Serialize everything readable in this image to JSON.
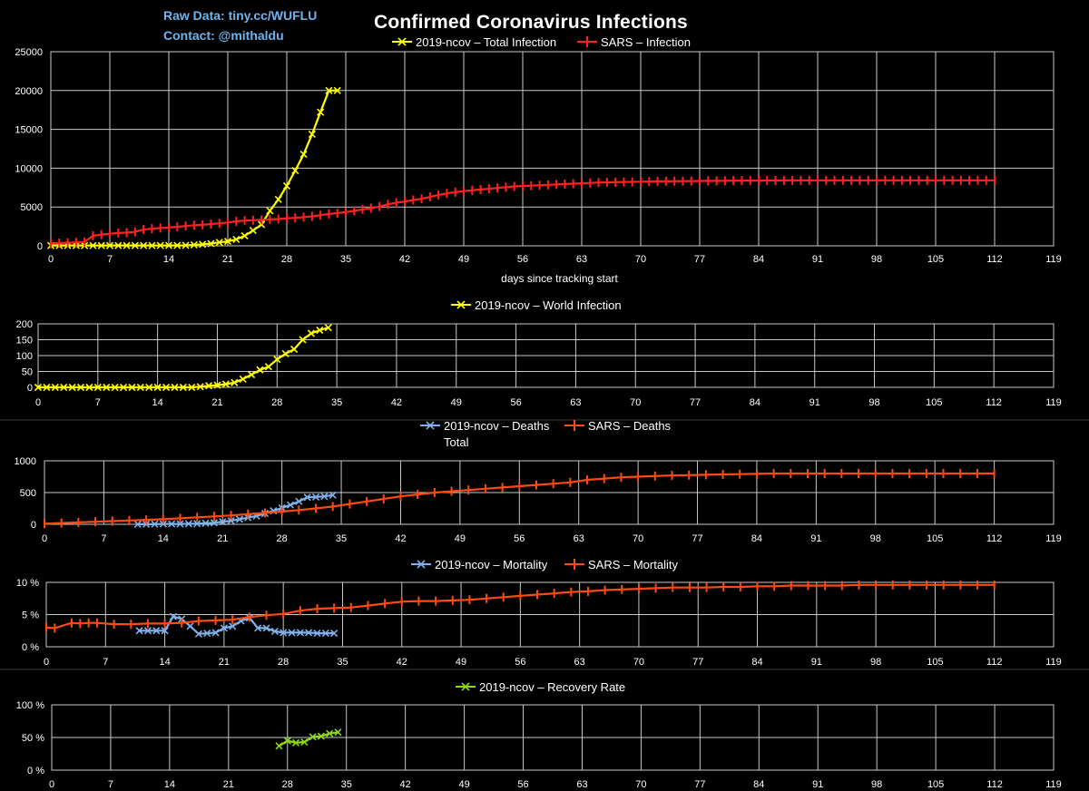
{
  "header": {
    "raw_data": "Raw Data: tiny.cc/WUFLU",
    "contact": "Contact: @mithaldu",
    "title": "Confirmed Coronavirus Infections"
  },
  "colors": {
    "background": "#000000",
    "grid": "#c8c8c8",
    "ncov_total": "#ffff00",
    "sars": "#ff2020",
    "sars_orange": "#ff4a10",
    "ncov_deaths": "#7fb2ec",
    "recovery": "#8ed81a"
  },
  "chart_data": [
    {
      "type": "line",
      "title": "",
      "xlabel": "days since tracking start",
      "ylabel": "",
      "xlim": [
        0,
        119
      ],
      "ylim": [
        0,
        25000
      ],
      "xticks": [
        "0",
        "7",
        "14",
        "21",
        "28",
        "35",
        "42",
        "49",
        "56",
        "63",
        "70",
        "77",
        "84",
        "91",
        "98",
        "105",
        "112",
        "119"
      ],
      "yticks": [
        "0",
        "5000",
        "10000",
        "15000",
        "20000",
        "25000"
      ],
      "series": [
        {
          "name": "2019-ncov – Total Infection",
          "marker": "x",
          "color": "#ffff00",
          "x": [
            0,
            1,
            2,
            3,
            4,
            5,
            6,
            7,
            8,
            9,
            10,
            11,
            12,
            13,
            14,
            15,
            16,
            17,
            18,
            19,
            20,
            21,
            22,
            23,
            24,
            25,
            26,
            27,
            28,
            29,
            30,
            31,
            32,
            33,
            34
          ],
          "values": [
            41,
            41,
            41,
            41,
            41,
            41,
            41,
            41,
            41,
            41,
            41,
            41,
            41,
            45,
            45,
            45,
            62,
            121,
            198,
            291,
            440,
            571,
            830,
            1287,
            1975,
            2744,
            4515,
            5974,
            7711,
            9692,
            11791,
            14380,
            17205,
            20000,
            20000
          ]
        },
        {
          "name": "SARS – Infection",
          "marker": "+",
          "color": "#ff2020",
          "x": [
            0,
            1,
            2,
            3,
            4,
            5,
            6,
            7,
            8,
            9,
            10,
            11,
            12,
            13,
            14,
            15,
            16,
            17,
            18,
            19,
            20,
            21,
            22,
            23,
            24,
            25,
            26,
            27,
            28,
            29,
            30,
            31,
            32,
            33,
            34,
            35,
            36,
            37,
            38,
            39,
            40,
            41,
            42,
            43,
            44,
            45,
            46,
            47,
            48,
            49,
            50,
            51,
            52,
            53,
            54,
            55,
            56,
            57,
            58,
            59,
            60,
            61,
            62,
            63,
            64,
            65,
            66,
            67,
            68,
            69,
            70,
            71,
            72,
            73,
            74,
            75,
            76,
            77,
            78,
            79,
            80,
            81,
            82,
            83,
            84,
            85,
            86,
            87,
            88,
            89,
            90,
            91,
            92,
            93,
            94,
            95,
            96,
            97,
            98,
            99,
            100,
            101,
            102,
            103,
            104,
            105,
            106,
            107,
            108,
            109,
            110,
            111,
            112
          ],
          "values": [
            300,
            350,
            400,
            450,
            500,
            1300,
            1450,
            1550,
            1650,
            1700,
            1800,
            2100,
            2200,
            2300,
            2350,
            2450,
            2550,
            2650,
            2700,
            2800,
            2900,
            3000,
            3150,
            3250,
            3300,
            3350,
            3400,
            3450,
            3550,
            3600,
            3700,
            3800,
            3950,
            4100,
            4200,
            4350,
            4500,
            4700,
            4850,
            5050,
            5350,
            5550,
            5700,
            5900,
            6050,
            6300,
            6550,
            6750,
            6900,
            7050,
            7150,
            7250,
            7350,
            7450,
            7550,
            7650,
            7700,
            7750,
            7800,
            7850,
            7900,
            7950,
            8000,
            8050,
            8100,
            8150,
            8180,
            8200,
            8220,
            8240,
            8260,
            8280,
            8300,
            8310,
            8320,
            8330,
            8340,
            8350,
            8360,
            8370,
            8380,
            8390,
            8400,
            8405,
            8410,
            8415,
            8420,
            8425,
            8430,
            8435,
            8440,
            8440,
            8440,
            8440,
            8440,
            8440,
            8440,
            8440,
            8440,
            8440,
            8440,
            8440,
            8440,
            8440,
            8440,
            8440,
            8440,
            8440,
            8440,
            8440,
            8440,
            8440,
            8440
          ]
        }
      ]
    },
    {
      "type": "line",
      "title": "",
      "xlabel": "",
      "ylabel": "",
      "xlim": [
        0,
        119
      ],
      "ylim": [
        0,
        200
      ],
      "xticks": [
        "0",
        "7",
        "14",
        "21",
        "28",
        "35",
        "42",
        "49",
        "56",
        "63",
        "70",
        "77",
        "84",
        "91",
        "98",
        "105",
        "112",
        "119"
      ],
      "yticks": [
        "0",
        "50",
        "100",
        "150",
        "200"
      ],
      "series": [
        {
          "name": "2019-ncov – World Infection",
          "marker": "x",
          "color": "#ffff00",
          "x": [
            0,
            1,
            2,
            3,
            4,
            5,
            6,
            7,
            8,
            9,
            10,
            11,
            12,
            13,
            14,
            15,
            16,
            17,
            18,
            19,
            20,
            21,
            22,
            23,
            24,
            25,
            26,
            27,
            28,
            29,
            30,
            31,
            32,
            33,
            34
          ],
          "values": [
            0,
            0,
            0,
            0,
            0,
            0,
            0,
            0,
            0,
            0,
            0,
            0,
            0,
            0,
            0,
            0,
            0,
            0,
            0,
            2,
            5,
            7,
            10,
            15,
            26,
            40,
            55,
            65,
            88,
            106,
            120,
            150,
            170,
            180,
            188
          ]
        }
      ]
    },
    {
      "type": "line",
      "title": "",
      "xlabel": "",
      "ylabel": "",
      "xlim": [
        0,
        119
      ],
      "ylim": [
        0,
        1000
      ],
      "xticks": [
        "0",
        "7",
        "14",
        "21",
        "28",
        "35",
        "42",
        "49",
        "56",
        "63",
        "70",
        "77",
        "84",
        "91",
        "98",
        "105",
        "112",
        "119"
      ],
      "yticks": [
        "0",
        "500",
        "1000"
      ],
      "series": [
        {
          "name": "2019-ncov – Deaths\nTotal",
          "marker": "x",
          "color": "#7fb2ec",
          "x": [
            11,
            12,
            13,
            14,
            15,
            16,
            17,
            18,
            19,
            20,
            21,
            22,
            23,
            24,
            25,
            26,
            27,
            28,
            29,
            30,
            31,
            32,
            33,
            34
          ],
          "values": [
            1,
            2,
            2,
            6,
            6,
            6,
            9,
            9,
            17,
            25,
            41,
            56,
            80,
            106,
            132,
            170,
            213,
            259,
            304,
            361,
            425,
            430,
            440,
            460
          ]
        },
        {
          "name": "SARS – Deaths",
          "marker": "+",
          "color": "#ff4a10",
          "x": [
            0,
            2,
            4,
            6,
            8,
            10,
            12,
            14,
            16,
            18,
            20,
            22,
            24,
            26,
            28,
            30,
            32,
            34,
            36,
            38,
            40,
            42,
            44,
            46,
            48,
            50,
            52,
            54,
            56,
            58,
            60,
            62,
            64,
            66,
            68,
            70,
            72,
            74,
            76,
            78,
            80,
            82,
            84,
            86,
            88,
            90,
            92,
            94,
            96,
            98,
            100,
            102,
            104,
            106,
            108,
            110,
            112
          ],
          "values": [
            10,
            20,
            30,
            40,
            50,
            60,
            70,
            80,
            95,
            110,
            125,
            140,
            160,
            180,
            200,
            225,
            250,
            280,
            320,
            360,
            400,
            440,
            470,
            500,
            520,
            540,
            560,
            580,
            600,
            620,
            640,
            660,
            700,
            720,
            740,
            750,
            760,
            770,
            775,
            780,
            785,
            790,
            795,
            800,
            800,
            800,
            800,
            800,
            800,
            800,
            800,
            800,
            800,
            800,
            800,
            800,
            800
          ]
        }
      ]
    },
    {
      "type": "line",
      "title": "",
      "xlabel": "",
      "ylabel": "",
      "xlim": [
        0,
        119
      ],
      "ylim": [
        0,
        10
      ],
      "xticks": [
        "0",
        "7",
        "14",
        "21",
        "28",
        "35",
        "42",
        "49",
        "56",
        "63",
        "70",
        "77",
        "84",
        "91",
        "98",
        "105",
        "112",
        "119"
      ],
      "yticks": [
        "0 %",
        "5 %",
        "10 %"
      ],
      "series": [
        {
          "name": "2019-ncov – Mortality",
          "marker": "x",
          "color": "#7fb2ec",
          "x": [
            11,
            12,
            13,
            14,
            15,
            16,
            17,
            18,
            19,
            20,
            21,
            22,
            23,
            24,
            25,
            26,
            27,
            28,
            29,
            30,
            31,
            32,
            33,
            34
          ],
          "values": [
            2.5,
            2.5,
            2.5,
            2.5,
            4.7,
            4.3,
            3.2,
            2.0,
            2.1,
            2.2,
            2.9,
            3.2,
            4.0,
            4.5,
            2.9,
            2.9,
            2.4,
            2.2,
            2.2,
            2.2,
            2.2,
            2.1,
            2.1,
            2.1
          ]
        },
        {
          "name": "SARS – Mortality",
          "marker": "+",
          "color": "#ff4a10",
          "x": [
            0,
            1,
            3,
            4,
            5,
            6,
            8,
            10,
            12,
            14,
            16,
            18,
            20,
            22,
            24,
            26,
            28,
            30,
            32,
            34,
            36,
            38,
            40,
            42,
            44,
            46,
            48,
            50,
            52,
            54,
            56,
            58,
            60,
            62,
            64,
            66,
            68,
            70,
            72,
            74,
            76,
            78,
            80,
            82,
            84,
            86,
            88,
            90,
            92,
            94,
            96,
            98,
            100,
            102,
            104,
            106,
            108,
            110,
            112
          ],
          "values": [
            3.0,
            2.9,
            3.7,
            3.6,
            3.7,
            3.7,
            3.5,
            3.5,
            3.6,
            3.6,
            3.7,
            4.0,
            4.1,
            4.2,
            4.6,
            4.9,
            5.1,
            5.6,
            5.9,
            6.0,
            6.1,
            6.4,
            6.7,
            7.0,
            7.1,
            7.1,
            7.2,
            7.3,
            7.5,
            7.7,
            7.9,
            8.1,
            8.3,
            8.5,
            8.6,
            8.8,
            8.9,
            9.0,
            9.1,
            9.2,
            9.2,
            9.2,
            9.3,
            9.3,
            9.4,
            9.4,
            9.5,
            9.5,
            9.5,
            9.5,
            9.6,
            9.6,
            9.6,
            9.6,
            9.6,
            9.6,
            9.6,
            9.6,
            9.6
          ]
        }
      ]
    },
    {
      "type": "line",
      "title": "",
      "xlabel": "",
      "ylabel": "",
      "xlim": [
        0,
        119
      ],
      "ylim": [
        0,
        100
      ],
      "xticks": [
        "0",
        "7",
        "14",
        "21",
        "28",
        "35",
        "42",
        "49",
        "56",
        "63",
        "70",
        "77",
        "84",
        "91",
        "98",
        "105",
        "112",
        "119"
      ],
      "yticks": [
        "0 %",
        "50 %",
        "100 %"
      ],
      "series": [
        {
          "name": "2019-ncov – Recovery Rate",
          "marker": "x",
          "color": "#8ed81a",
          "x": [
            27,
            28,
            29,
            30,
            31,
            32,
            33,
            34
          ],
          "values": [
            37,
            45,
            42,
            43,
            51,
            52,
            56,
            58
          ]
        }
      ]
    }
  ]
}
